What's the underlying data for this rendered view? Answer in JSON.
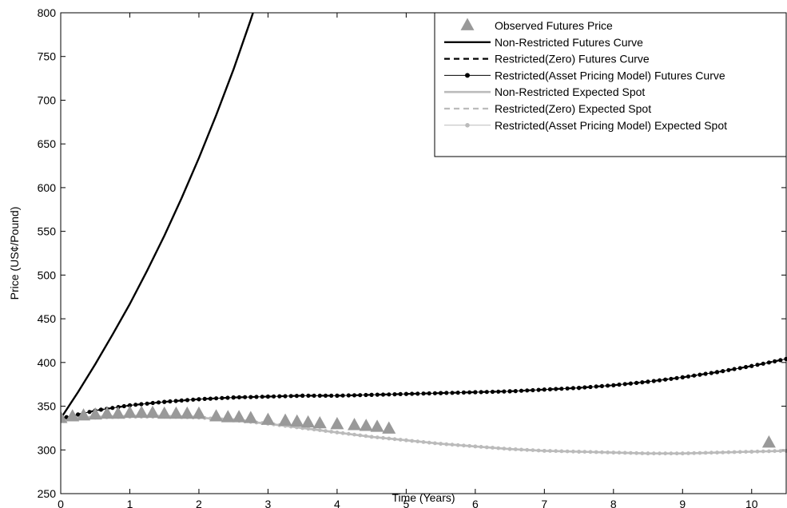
{
  "chart_data": {
    "type": "line",
    "title": "",
    "xlabel": "Time (Years)",
    "ylabel": "Price (US¢/Pound)",
    "xlim": [
      0,
      10.5
    ],
    "ylim": [
      250,
      800
    ],
    "xticks": [
      "0",
      "1",
      "2",
      "3",
      "4",
      "5",
      "6",
      "7",
      "8",
      "9",
      "10"
    ],
    "yticks": [
      "250",
      "300",
      "350",
      "400",
      "450",
      "500",
      "550",
      "600",
      "650",
      "700",
      "750",
      "800"
    ],
    "grid": false,
    "legend_position": "top-right",
    "colors": {
      "observed": "#999999",
      "futures": "#000000",
      "spot": "#bbbbbb"
    },
    "series": [
      {
        "name": "Observed Futures Price",
        "style": "markers-triangle",
        "points": [
          [
            0.0,
            336
          ],
          [
            0.17,
            338
          ],
          [
            0.33,
            339
          ],
          [
            0.5,
            340
          ],
          [
            0.67,
            341
          ],
          [
            0.83,
            341
          ],
          [
            1.0,
            342
          ],
          [
            1.17,
            342
          ],
          [
            1.33,
            342
          ],
          [
            1.5,
            341
          ],
          [
            1.67,
            341
          ],
          [
            1.83,
            341
          ],
          [
            2.0,
            341
          ],
          [
            2.25,
            338
          ],
          [
            2.42,
            337
          ],
          [
            2.58,
            337
          ],
          [
            2.75,
            336
          ],
          [
            3.0,
            334
          ],
          [
            3.25,
            333
          ],
          [
            3.42,
            332
          ],
          [
            3.58,
            331
          ],
          [
            3.75,
            330
          ],
          [
            4.0,
            329
          ],
          [
            4.25,
            328
          ],
          [
            4.42,
            327
          ],
          [
            4.58,
            326
          ],
          [
            4.75,
            324
          ],
          [
            10.25,
            308
          ]
        ]
      },
      {
        "name": "Non-Restricted Futures Curve",
        "style": "solid-black",
        "points": [
          [
            0,
            336
          ],
          [
            0.25,
            366
          ],
          [
            0.5,
            398
          ],
          [
            0.75,
            432
          ],
          [
            1.0,
            467
          ],
          [
            1.25,
            505
          ],
          [
            1.5,
            545
          ],
          [
            1.75,
            588
          ],
          [
            2.0,
            634
          ],
          [
            2.25,
            683
          ],
          [
            2.5,
            735
          ],
          [
            2.75,
            792
          ],
          [
            2.8,
            804
          ]
        ]
      },
      {
        "name": "Restricted(Zero) Futures Curve",
        "style": "dashed-black",
        "points": [
          [
            0,
            336
          ],
          [
            0.5,
            345
          ],
          [
            1,
            351
          ],
          [
            1.5,
            355
          ],
          [
            2,
            358
          ],
          [
            2.5,
            360
          ],
          [
            3,
            361
          ],
          [
            3.5,
            362
          ],
          [
            4,
            362
          ],
          [
            4.5,
            363
          ],
          [
            5,
            364
          ],
          [
            5.5,
            365
          ],
          [
            6,
            366
          ],
          [
            6.5,
            367
          ],
          [
            7,
            369
          ],
          [
            7.5,
            371
          ],
          [
            8,
            374
          ],
          [
            8.5,
            378
          ],
          [
            9,
            383
          ],
          [
            9.5,
            389
          ],
          [
            10,
            396
          ],
          [
            10.5,
            404
          ]
        ]
      },
      {
        "name": "Restricted(Asset Pricing Model) Futures Curve",
        "style": "dotted-black-markers",
        "points": [
          [
            0,
            336
          ],
          [
            0.5,
            345
          ],
          [
            1,
            351
          ],
          [
            1.5,
            355
          ],
          [
            2,
            358
          ],
          [
            2.5,
            360
          ],
          [
            3,
            361
          ],
          [
            3.5,
            362
          ],
          [
            4,
            362
          ],
          [
            4.5,
            363
          ],
          [
            5,
            364
          ],
          [
            5.5,
            365
          ],
          [
            6,
            366
          ],
          [
            6.5,
            367
          ],
          [
            7,
            369
          ],
          [
            7.5,
            371
          ],
          [
            8,
            374
          ],
          [
            8.5,
            378
          ],
          [
            9,
            383
          ],
          [
            9.5,
            389
          ],
          [
            10,
            396
          ],
          [
            10.5,
            404
          ]
        ]
      },
      {
        "name": "Non-Restricted Expected Spot",
        "style": "solid-grey",
        "points": [
          [
            0,
            336
          ],
          [
            0.5,
            337
          ],
          [
            1,
            338
          ],
          [
            1.5,
            338
          ],
          [
            2,
            337
          ],
          [
            2.5,
            334
          ],
          [
            3,
            330
          ],
          [
            3.5,
            325
          ],
          [
            4,
            320
          ],
          [
            4.5,
            315
          ],
          [
            5,
            311
          ],
          [
            5.5,
            307
          ],
          [
            6,
            304
          ],
          [
            6.5,
            301
          ],
          [
            7,
            299
          ],
          [
            7.5,
            298
          ],
          [
            8,
            297
          ],
          [
            8.5,
            296
          ],
          [
            9,
            296
          ],
          [
            9.5,
            297
          ],
          [
            10,
            298
          ],
          [
            10.5,
            299
          ]
        ]
      },
      {
        "name": "Restricted(Zero) Expected Spot",
        "style": "dashed-grey",
        "points": [
          [
            0,
            336
          ],
          [
            0.5,
            337
          ],
          [
            1,
            338
          ],
          [
            1.5,
            338
          ],
          [
            2,
            337
          ],
          [
            2.5,
            334
          ],
          [
            3,
            330
          ],
          [
            3.5,
            325
          ],
          [
            4,
            320
          ],
          [
            4.5,
            315
          ],
          [
            5,
            311
          ],
          [
            5.5,
            307
          ],
          [
            6,
            304
          ],
          [
            6.5,
            301
          ],
          [
            7,
            299
          ],
          [
            7.5,
            298
          ],
          [
            8,
            297
          ],
          [
            8.5,
            296
          ],
          [
            9,
            296
          ],
          [
            9.5,
            297
          ],
          [
            10,
            298
          ],
          [
            10.5,
            299
          ]
        ]
      },
      {
        "name": "Restricted(Asset Pricing Model) Expected Spot",
        "style": "dotted-grey-markers",
        "points": [
          [
            0,
            336
          ],
          [
            0.5,
            337
          ],
          [
            1,
            338
          ],
          [
            1.5,
            338
          ],
          [
            2,
            337
          ],
          [
            2.5,
            334
          ],
          [
            3,
            330
          ],
          [
            3.5,
            325
          ],
          [
            4,
            320
          ],
          [
            4.5,
            315
          ],
          [
            5,
            311
          ],
          [
            5.5,
            307
          ],
          [
            6,
            304
          ],
          [
            6.5,
            301
          ],
          [
            7,
            299
          ],
          [
            7.5,
            298
          ],
          [
            8,
            297
          ],
          [
            8.5,
            296
          ],
          [
            9,
            296
          ],
          [
            9.5,
            297
          ],
          [
            10,
            298
          ],
          [
            10.5,
            299
          ]
        ]
      }
    ]
  }
}
